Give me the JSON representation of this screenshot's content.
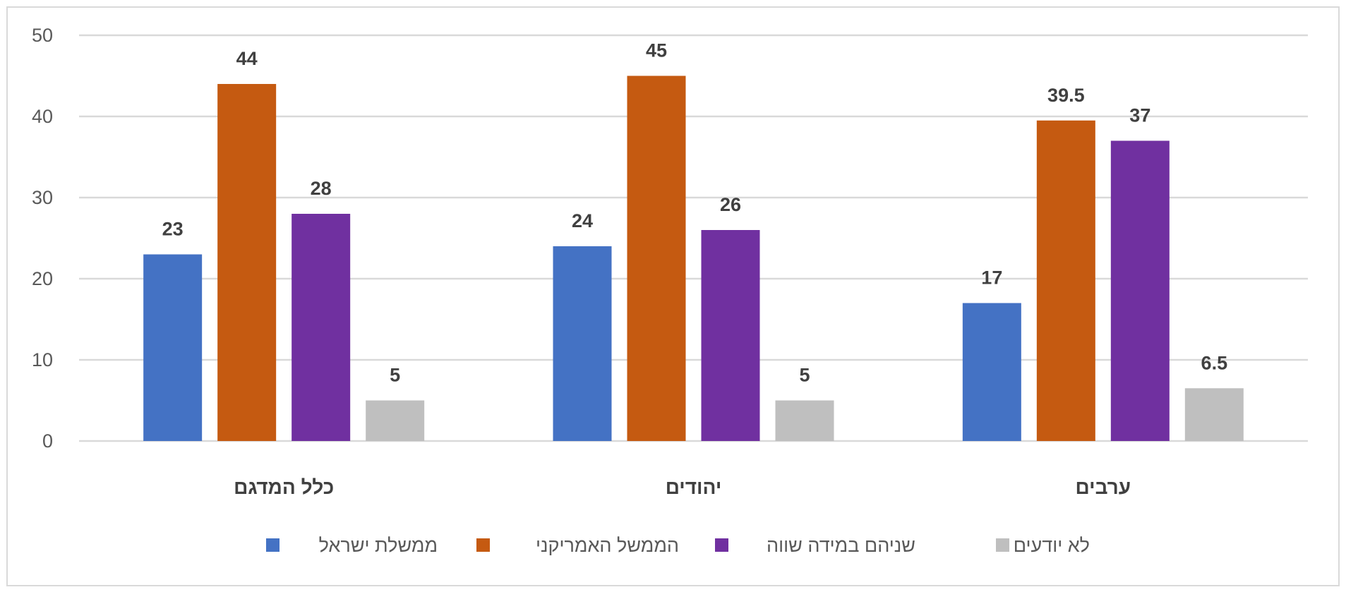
{
  "chart_data": {
    "type": "bar",
    "title": "",
    "xlabel": "",
    "ylabel": "",
    "ylim": [
      0,
      50
    ],
    "yticks": [
      0,
      10,
      20,
      30,
      40,
      50
    ],
    "grid": true,
    "legend_position": "bottom",
    "categories": [
      "כלל המדגם",
      "יהודים",
      "ערבים"
    ],
    "series": [
      {
        "name": "ממשלת ישראל",
        "color": "#4472C4",
        "values": [
          23,
          24,
          17
        ],
        "labels": [
          "23",
          "24",
          "17"
        ]
      },
      {
        "name": "הממשל האמריקני",
        "color": "#C55A11",
        "values": [
          44,
          45,
          39.5
        ],
        "labels": [
          "44",
          "45",
          "39.5"
        ]
      },
      {
        "name": "שניהם במידה שווה",
        "color": "#7030A0",
        "values": [
          28,
          26,
          37
        ],
        "labels": [
          "28",
          "26",
          "37"
        ]
      },
      {
        "name": "לא יודעים",
        "color": "#BFBFBF",
        "values": [
          5,
          5,
          6.5
        ],
        "labels": [
          "5",
          "5",
          "6.5"
        ]
      }
    ]
  }
}
